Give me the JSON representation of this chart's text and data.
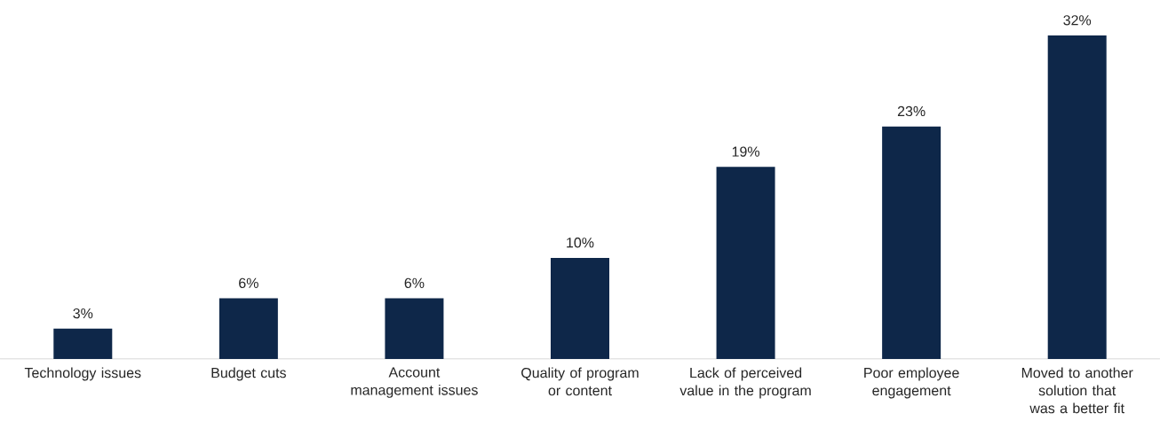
{
  "chart_data": {
    "type": "bar",
    "categories": [
      "Technology issues",
      "Budget cuts",
      "Account management issues",
      "Quality of program or content",
      "Lack of perceived value in the program",
      "Poor employee engagement",
      "Moved to another solution that was a better fit"
    ],
    "values": [
      3,
      6,
      6,
      10,
      19,
      23,
      32
    ],
    "value_labels": [
      "3%",
      "6%",
      "6%",
      "10%",
      "19%",
      "23%",
      "32%"
    ],
    "color": "#0e2749"
  }
}
